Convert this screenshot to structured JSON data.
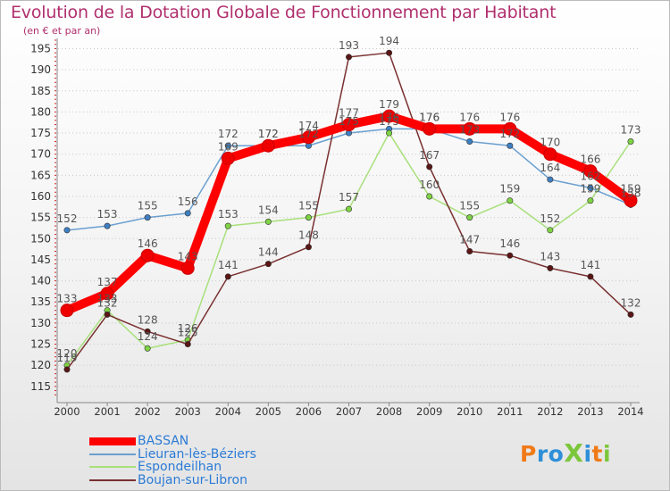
{
  "title": "Evolution de la Dotation Globale de Fonctionnement par Habitant",
  "subtitle": "(en € et par an)",
  "logo_text": "ProXiti",
  "colors": {
    "title": "#b0306e",
    "legend_text": "#2b7bd6",
    "axis": "#888888",
    "grid": "#c8c8c8",
    "tick_marks": "#cc2222",
    "value_label": "#555555"
  },
  "chart_data": {
    "type": "line",
    "title": "Evolution de la Dotation Globale de Fonctionnement par Habitant",
    "subtitle": "(en € et par an)",
    "xlabel": "",
    "ylabel": "",
    "x": [
      "2000",
      "2001",
      "2002",
      "2003",
      "2004",
      "2005",
      "2006",
      "2007",
      "2008",
      "2009",
      "2010",
      "2011",
      "2012",
      "2013",
      "2014"
    ],
    "ylim": [
      112,
      197
    ],
    "yticks": [
      115,
      120,
      125,
      130,
      135,
      140,
      145,
      150,
      155,
      160,
      165,
      170,
      175,
      180,
      185,
      190,
      195
    ],
    "grid": true,
    "legend_position": "bottom-left",
    "series": [
      {
        "name": "BASSAN",
        "color": "#ff0000",
        "marker": "#ee0000",
        "emphasis": true,
        "values": [
          133,
          137,
          146,
          143,
          169,
          172,
          174,
          177,
          179,
          176,
          176,
          176,
          170,
          166,
          159
        ]
      },
      {
        "name": "Lieuran-lès-Béziers",
        "color": "#6a9fd0",
        "marker": "#3d7fc2",
        "emphasis": false,
        "values": [
          152,
          153,
          155,
          156,
          172,
          172,
          172,
          175,
          176,
          176,
          173,
          172,
          164,
          162,
          158
        ]
      },
      {
        "name": "Espondeilhan",
        "color": "#a8e07a",
        "marker": "#7fd444",
        "emphasis": false,
        "values": [
          120,
          133,
          124,
          126,
          153,
          154,
          155,
          157,
          175,
          160,
          155,
          159,
          152,
          159,
          173
        ]
      },
      {
        "name": "Boujan-sur-Libron",
        "color": "#7a3030",
        "marker": "#5a1515",
        "emphasis": false,
        "values": [
          119,
          132,
          128,
          125,
          141,
          144,
          148,
          193,
          194,
          167,
          147,
          146,
          143,
          141,
          132
        ]
      }
    ]
  }
}
